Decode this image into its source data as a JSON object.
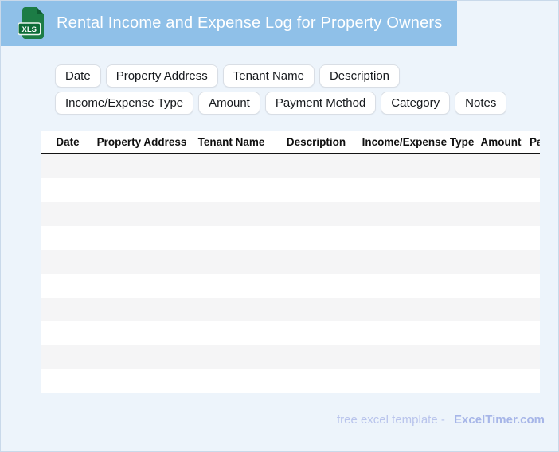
{
  "header": {
    "title": "Rental Income and Expense Log for Property Owners",
    "icon_label": "XLS"
  },
  "field_chips": [
    "Date",
    "Property Address",
    "Tenant Name",
    "Description",
    "Income/Expense Type",
    "Amount",
    "Payment Method",
    "Category",
    "Notes"
  ],
  "table": {
    "columns": [
      "Date",
      "Property Address",
      "Tenant Name",
      "Description",
      "Income/Expense Type",
      "Amount",
      "Payment Method"
    ],
    "empty_row_count": 10
  },
  "footer": {
    "credit_text": "free excel template -",
    "brand": "ExcelTimer.com"
  },
  "colors": {
    "header_bar": "#8fc0e8",
    "page_background": "#edf4fb",
    "icon_green": "#1c7c45",
    "icon_fold_green": "#0f5e32",
    "icon_badge_green": "#0c6b37",
    "header_border": "#141414",
    "row_stripe": "#f5f5f6",
    "footer_text": "#b9c4ec",
    "brand_text": "#a7b6e8"
  }
}
